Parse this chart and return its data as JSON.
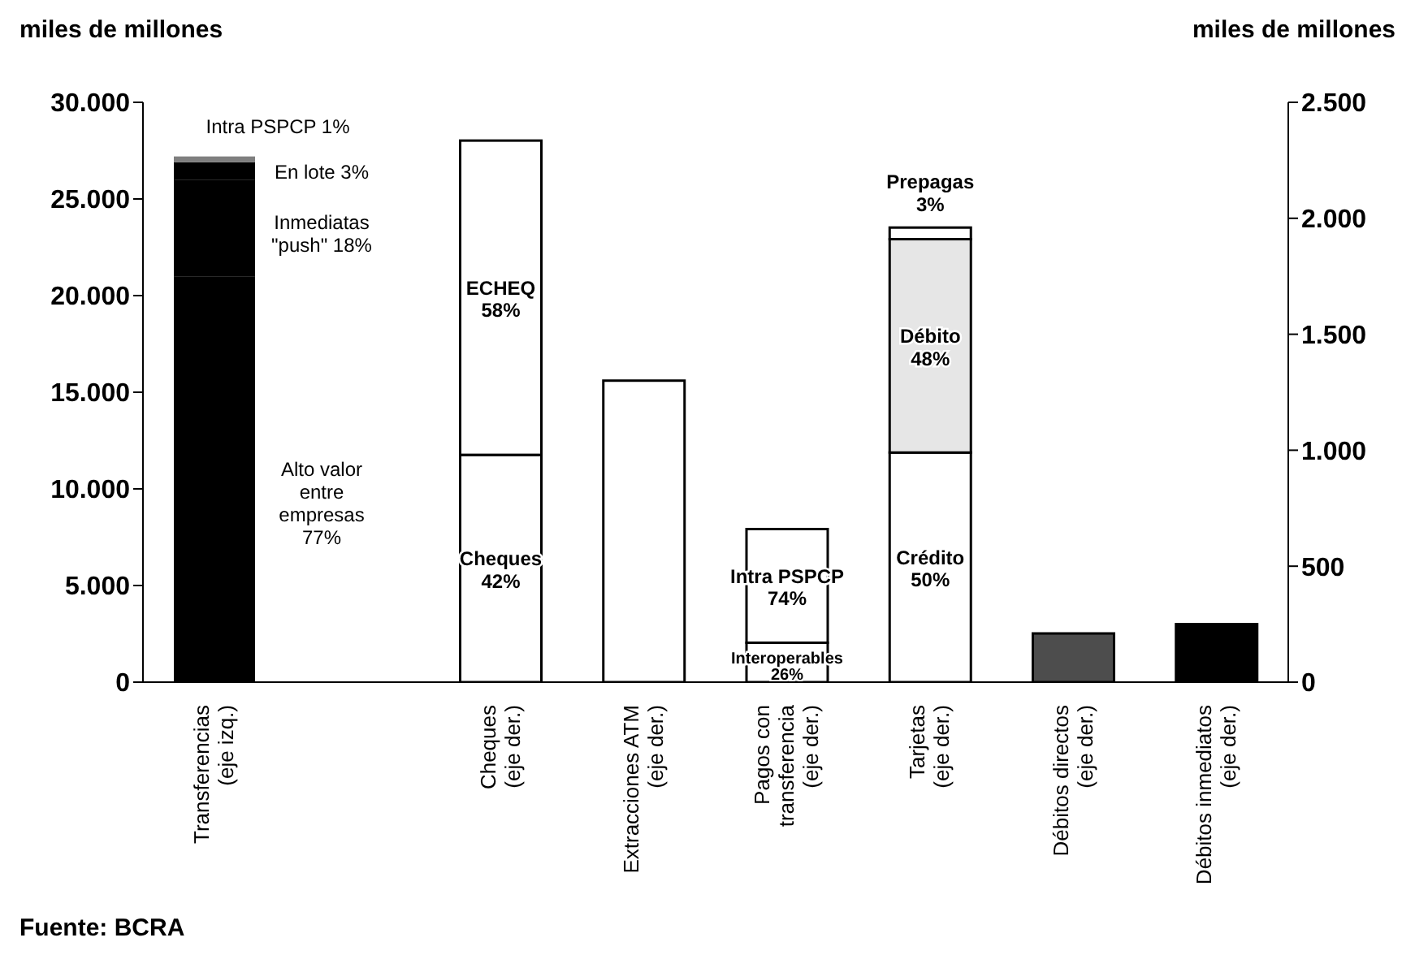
{
  "chart_data": {
    "type": "bar",
    "stacked": true,
    "ylabel": "miles de millones",
    "y2label": "miles de millones",
    "categories": [
      "Transferencias\n(eje izq.)",
      null,
      "Cheques\n(eje der.)",
      "Extracciones ATM\n(eje der.)",
      "Pagos con\ntransferencia\n(eje der.)",
      "Tarjetas\n(eje der.)",
      "Débitos directos\n(eje der.)",
      "Débitos inmediatos\n(eje der.)"
    ],
    "series": [
      {
        "axis": "y",
        "colors": [
          "#000000",
          null,
          null,
          null,
          null,
          null,
          null,
          null
        ],
        "values": [
          21000,
          null,
          null,
          null,
          null,
          null,
          null,
          null
        ]
      },
      {
        "axis": "y",
        "colors": [
          "#000000",
          null,
          null,
          null,
          null,
          null,
          null,
          null
        ],
        "values": [
          5000,
          null,
          null,
          null,
          null,
          null,
          null,
          null
        ]
      },
      {
        "axis": "y",
        "colors": [
          "#000000",
          null,
          null,
          null,
          null,
          null,
          null,
          null
        ],
        "values": [
          900,
          null,
          null,
          null,
          null,
          null,
          null,
          null
        ]
      },
      {
        "axis": "y",
        "colors": [
          "#7f7f7f",
          null,
          null,
          null,
          null,
          null,
          null,
          null
        ],
        "values": [
          300,
          null,
          null,
          null,
          null,
          null,
          null,
          null
        ]
      },
      {
        "axis": "y2",
        "colors": [
          null,
          null,
          "#ffffff",
          "#ffffff",
          "#ffffff",
          "#ffffff",
          "#4d4d4d",
          "#000000"
        ],
        "values": [
          null,
          null,
          980,
          1300,
          170,
          990,
          210,
          250
        ],
        "value_labels": [
          null,
          null,
          "Cheques\n42%",
          null,
          "Interoperables\n26%",
          "Crédito\n50%",
          null,
          null
        ]
      },
      {
        "axis": "y2",
        "colors": [
          null,
          null,
          "#ffffff",
          null,
          "#ffffff",
          "#e6e6e6",
          null,
          null
        ],
        "values": [
          null,
          null,
          1355,
          null,
          490,
          920,
          null,
          null
        ],
        "value_labels": [
          null,
          null,
          "ECHEQ\n58%",
          null,
          "Intra PSPCP\n74%",
          "Débito\n48%",
          null,
          null
        ]
      },
      {
        "axis": "y2",
        "colors": [
          null,
          null,
          null,
          null,
          null,
          "#ffffff",
          null,
          null
        ],
        "values": [
          null,
          null,
          null,
          null,
          null,
          50,
          null,
          null
        ],
        "value_labels": [
          null,
          null,
          null,
          null,
          null,
          "Prepagas\n3%",
          null,
          null
        ]
      }
    ],
    "ylim": [
      0,
      30000
    ],
    "yticks": [
      {
        "value": 0,
        "label": "0"
      },
      {
        "value": 5000,
        "label": "5.000"
      },
      {
        "value": 10000,
        "label": "10.000"
      },
      {
        "value": 15000,
        "label": "15.000"
      },
      {
        "value": 20000,
        "label": "20.000"
      },
      {
        "value": 25000,
        "label": "25.000"
      },
      {
        "value": 30000,
        "label": "30.000"
      }
    ],
    "y2lim": [
      0,
      2500
    ],
    "y2ticks": [
      {
        "value": 0,
        "label": "0"
      },
      {
        "value": 500,
        "label": "500"
      },
      {
        "value": 1000,
        "label": "1.000"
      },
      {
        "value": 1500,
        "label": "1.500"
      },
      {
        "value": 2000,
        "label": "2.000"
      },
      {
        "value": 2500,
        "label": "2.500"
      }
    ],
    "grid": false,
    "legend": false,
    "annotations": [
      "Intra PSPCP 1%",
      "En lote 3%",
      "Inmediatas\n\"push\" 18%",
      "Alto valor\nentre\nempresas\n77%",
      "Fuente: BCRA"
    ]
  }
}
